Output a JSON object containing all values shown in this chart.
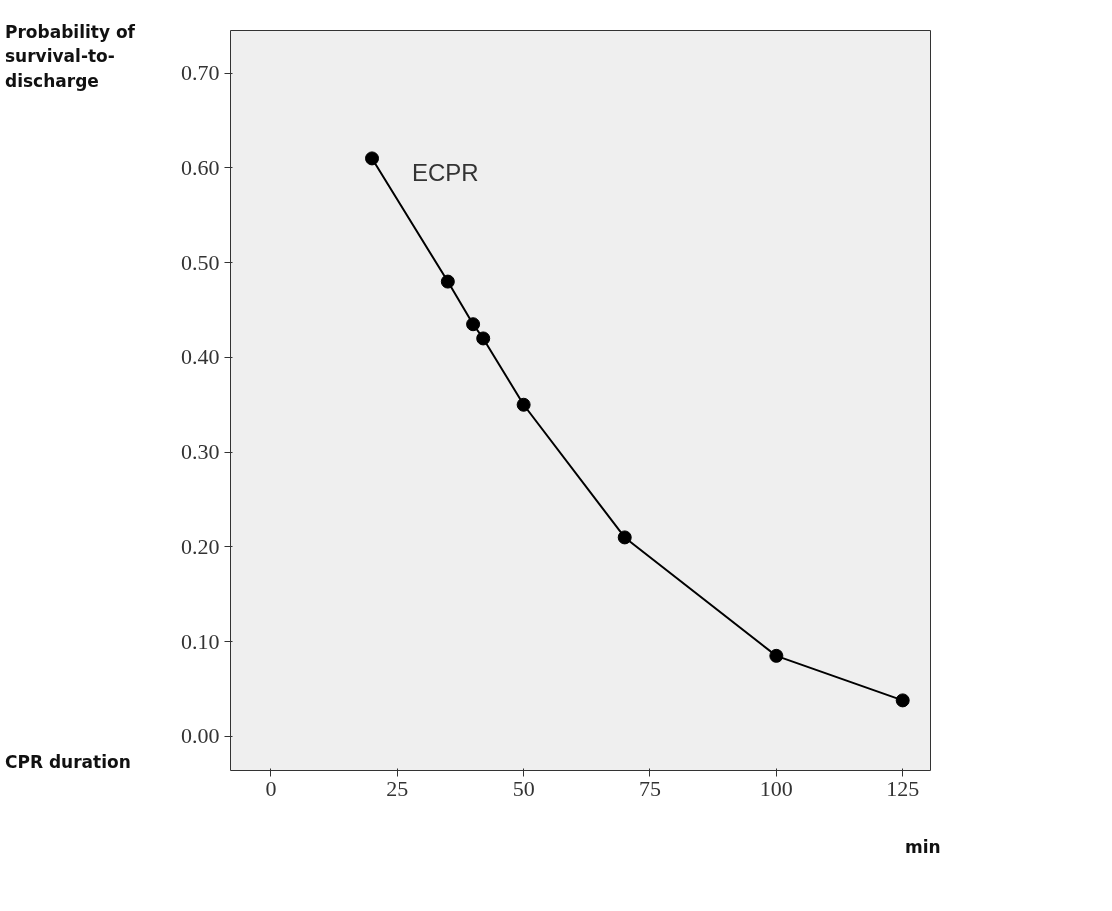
{
  "chart_data": {
    "type": "line",
    "xlabel": "CPR duration",
    "ylabel": "Probability of survival-to-discharge",
    "annotations": [
      "min"
    ],
    "x": [
      20,
      35,
      40,
      42,
      50,
      70,
      100,
      125
    ],
    "series": [
      {
        "name": "ECPR",
        "color": "#000000",
        "values": [
          0.61,
          0.48,
          0.435,
          0.42,
          0.35,
          0.21,
          0.085,
          0.038
        ]
      }
    ],
    "xlim": [
      -8,
      130.5
    ],
    "ylim": [
      -0.036,
      0.745
    ],
    "xticks": [
      0,
      25,
      50,
      75,
      100,
      125
    ],
    "yticks": [
      {
        "value": 0,
        "label": "0.00"
      },
      {
        "value": 0.1,
        "label": "0.10"
      },
      {
        "value": 0.2,
        "label": "0.20"
      },
      {
        "value": 0.3,
        "label": "0.30"
      },
      {
        "value": 0.4,
        "label": "0.40"
      },
      {
        "value": 0.5,
        "label": "0.50"
      },
      {
        "value": 0.6,
        "label": "0.60"
      },
      {
        "value": 0.7,
        "label": "0.70"
      }
    ],
    "marker": "circle",
    "line_style": "solid",
    "grid": false
  }
}
